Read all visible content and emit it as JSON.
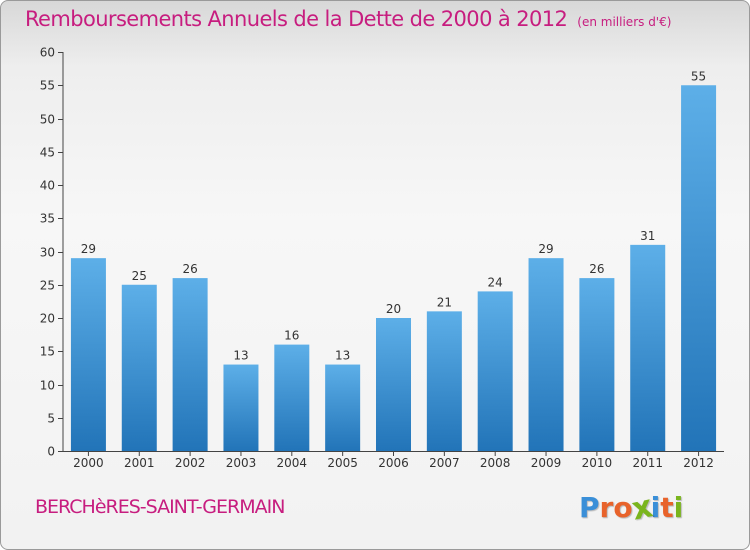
{
  "header": {
    "title": "Remboursements Annuels de la Dette de 2000 à 2012",
    "unit": "(en milliers d'€)"
  },
  "footer": {
    "commune": "BERCHèRES-SAINT-GERMAIN",
    "logo": "Proxiti"
  },
  "colors": {
    "title": "#c71d7f",
    "bar_top": "#5dafe8",
    "bar_bottom": "#2274b8",
    "logo_letters": [
      "#3a8fd8",
      "#e8632b",
      "#e8632b",
      "#7ab51d",
      "#3a8fd8",
      "#e8632b",
      "#7ab51d"
    ]
  },
  "chart_data": {
    "type": "bar",
    "categories": [
      "2000",
      "2001",
      "2002",
      "2003",
      "2004",
      "2005",
      "2006",
      "2007",
      "2008",
      "2009",
      "2010",
      "2011",
      "2012"
    ],
    "values": [
      29,
      25,
      26,
      13,
      16,
      13,
      20,
      21,
      24,
      29,
      26,
      31,
      55
    ],
    "title": "Remboursements Annuels de la Dette de 2000 à 2012",
    "subtitle": "(en milliers d'€)",
    "ylim": [
      0,
      60
    ],
    "yticks": [
      0,
      5,
      10,
      15,
      20,
      25,
      30,
      35,
      40,
      45,
      50,
      55,
      60
    ],
    "grid": false,
    "data_labels": true
  }
}
